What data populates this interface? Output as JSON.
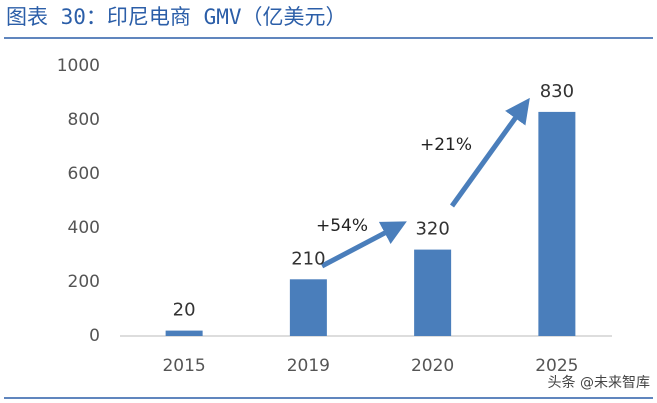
{
  "chart_data": {
    "type": "bar",
    "title": "图表 30：印尼电商 GMV（亿美元）",
    "categories": [
      "2015",
      "2019",
      "2020",
      "2025"
    ],
    "values": [
      20,
      210,
      320,
      830
    ],
    "color": "#4a7ebb",
    "ylim": [
      0,
      1000
    ],
    "yticks": [
      0,
      200,
      400,
      600,
      800,
      1000
    ],
    "grid": false,
    "annotations": [
      "+54%",
      "+21%"
    ],
    "watermark": "头条 @未来智库"
  }
}
